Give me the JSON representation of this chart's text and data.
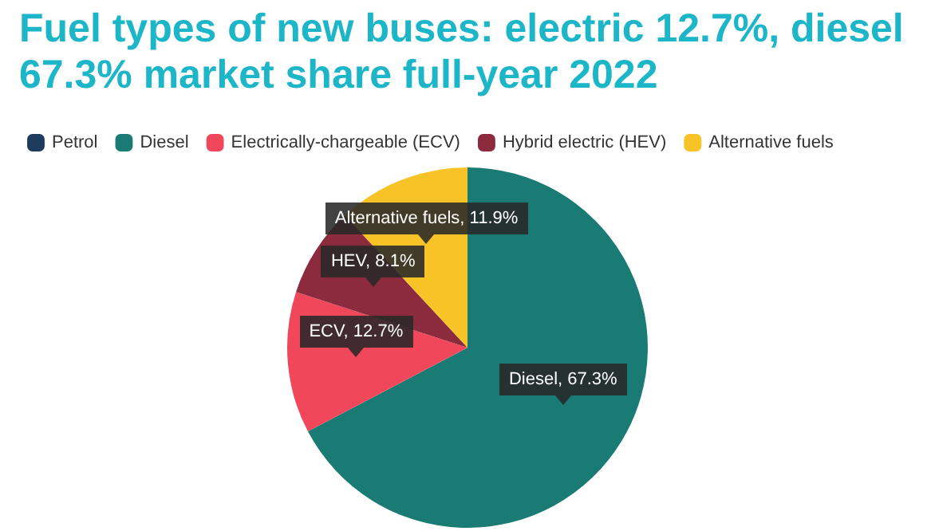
{
  "chart_data": {
    "type": "pie",
    "title": "Fuel types of new buses: electric 12.7%, diesel 67.3% market share full-year 2022",
    "categories": [
      "Petrol",
      "Diesel",
      "Electrically-chargeable (ECV)",
      "Hybrid electric (HEV)",
      "Alternative fuels"
    ],
    "values": [
      0,
      67.3,
      12.7,
      8.1,
      11.9
    ],
    "colors": [
      "#1d3b5c",
      "#1a7a74",
      "#f0475b",
      "#8c2b3d",
      "#f8c327"
    ],
    "value_labels": [
      null,
      "Diesel, 67.3%",
      "ECV, 12.7%",
      "HEV, 8.1%",
      "Alternative fuels, 11.9%"
    ],
    "legend": "top left"
  }
}
